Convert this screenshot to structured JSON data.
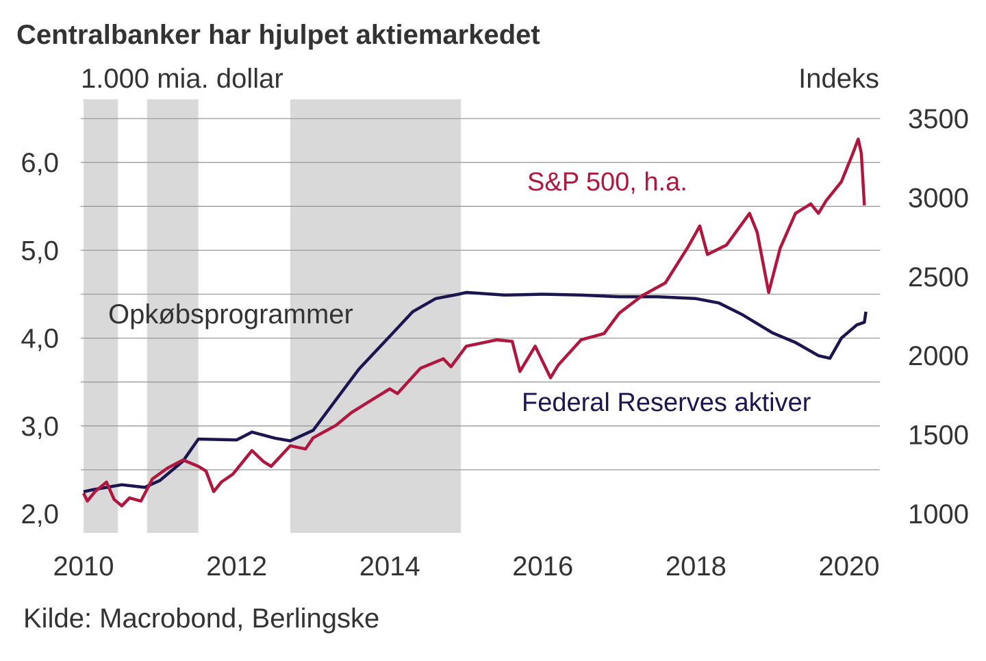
{
  "chart_data": {
    "type": "line",
    "title": "Centralbanker har hjulpet aktiemarkedet",
    "ylabel_left": "1.000 mia. dollar",
    "ylabel_right": "Indeks",
    "source": "Kilde: Macrobond, Berlingske",
    "x_ticks": [
      "2010",
      "2012",
      "2014",
      "2016",
      "2018",
      "2020"
    ],
    "x_tick_values": [
      2010,
      2012,
      2014,
      2016,
      2018,
      2020
    ],
    "xlim": [
      2010,
      2020.4
    ],
    "y_left_ticks": [
      "6,0",
      "5,0",
      "4,0",
      "3,0",
      "2,0"
    ],
    "y_left_tick_values": [
      6,
      5,
      4,
      3,
      2
    ],
    "ylim_left": [
      1.8,
      6.5
    ],
    "y_right_ticks": [
      "3500",
      "3000",
      "2500",
      "2000",
      "1500",
      "1000"
    ],
    "y_right_tick_values": [
      3500,
      3000,
      2500,
      2000,
      1500,
      1000
    ],
    "ylim_right": [
      1000,
      3500
    ],
    "grid": true,
    "shaded_label": "Opkøbsprogrammer",
    "shaded_periods": [
      [
        2010.0,
        2010.45
      ],
      [
        2010.83,
        2011.5
      ],
      [
        2012.7,
        2014.93
      ]
    ],
    "shade_color": "#d9d9d9",
    "series": [
      {
        "name": "Federal Reserves aktiver",
        "axis": "left",
        "color": "#1c1650",
        "x": [
          2010,
          2010.1,
          2010.5,
          2010.8,
          2011.0,
          2011.3,
          2011.5,
          2012.0,
          2012.2,
          2012.5,
          2012.7,
          2013.0,
          2013.3,
          2013.6,
          2014.0,
          2014.3,
          2014.6,
          2014.9,
          2015.0,
          2015.5,
          2016.0,
          2016.5,
          2017.0,
          2017.5,
          2018.0,
          2018.3,
          2018.6,
          2019.0,
          2019.3,
          2019.6,
          2019.75,
          2019.9,
          2020.1,
          2020.2,
          2020.22
        ],
        "values": [
          2.25,
          2.27,
          2.33,
          2.3,
          2.38,
          2.6,
          2.85,
          2.84,
          2.93,
          2.86,
          2.83,
          2.95,
          3.3,
          3.65,
          4.02,
          4.3,
          4.45,
          4.5,
          4.52,
          4.49,
          4.5,
          4.49,
          4.47,
          4.47,
          4.45,
          4.4,
          4.27,
          4.06,
          3.95,
          3.8,
          3.77,
          4.0,
          4.15,
          4.18,
          4.3
        ]
      },
      {
        "name": "S&P 500, h.a.",
        "axis": "right",
        "color": "#b0173f",
        "x": [
          2010,
          2010.05,
          2010.15,
          2010.3,
          2010.4,
          2010.5,
          2010.6,
          2010.75,
          2010.9,
          2011.1,
          2011.3,
          2011.5,
          2011.6,
          2011.7,
          2011.8,
          2011.95,
          2012.2,
          2012.35,
          2012.45,
          2012.7,
          2012.9,
          2013.0,
          2013.3,
          2013.5,
          2013.7,
          2014.0,
          2014.1,
          2014.4,
          2014.7,
          2014.8,
          2015.0,
          2015.4,
          2015.6,
          2015.7,
          2015.9,
          2016.1,
          2016.2,
          2016.5,
          2016.8,
          2017.0,
          2017.3,
          2017.6,
          2017.9,
          2018.05,
          2018.15,
          2018.4,
          2018.7,
          2018.8,
          2018.95,
          2019.1,
          2019.3,
          2019.5,
          2019.6,
          2019.7,
          2019.9,
          2020.05,
          2020.12,
          2020.16,
          2020.2
        ],
        "values": [
          1130,
          1080,
          1140,
          1200,
          1090,
          1050,
          1100,
          1080,
          1220,
          1290,
          1340,
          1300,
          1270,
          1140,
          1200,
          1250,
          1400,
          1330,
          1300,
          1430,
          1410,
          1480,
          1560,
          1640,
          1700,
          1790,
          1760,
          1920,
          1980,
          1930,
          2060,
          2100,
          2090,
          1900,
          2060,
          1860,
          1940,
          2100,
          2140,
          2270,
          2380,
          2460,
          2690,
          2820,
          2640,
          2700,
          2900,
          2780,
          2400,
          2680,
          2900,
          2960,
          2900,
          2980,
          3100,
          3280,
          3370,
          3280,
          2950
        ]
      }
    ]
  }
}
